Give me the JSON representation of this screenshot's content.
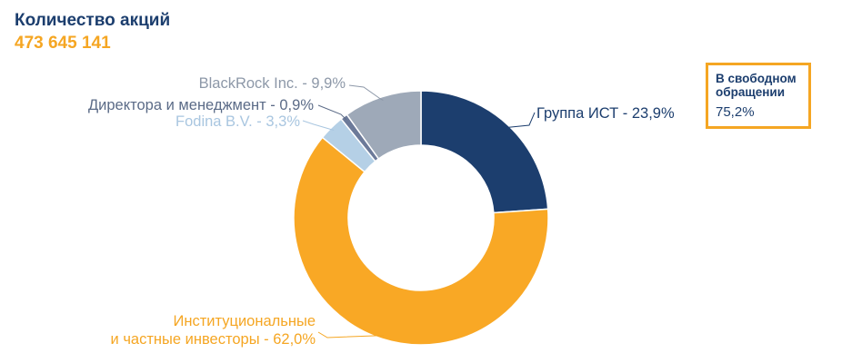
{
  "header": {
    "title": "Количество акций",
    "count": "473 645 141"
  },
  "callout": {
    "label": "В свободном обращении",
    "value": "75,2%"
  },
  "colors": {
    "group_ist": "#1c3e6e",
    "institutional": "#f9a825",
    "fodina": "#b5d0e6",
    "directors": "#6c7a99",
    "blackrock": "#9ea9b8",
    "accent": "#f5a623"
  },
  "chart_data": {
    "type": "pie",
    "donut": true,
    "title": "",
    "slices": [
      {
        "name": "Группа ИСТ",
        "value": 23.9,
        "label": "Группа ИСТ - 23,9%",
        "color": "#1c3e6e",
        "label_color": "#1c3e6e"
      },
      {
        "name": "Институциональные и частные инвесторы",
        "value": 62.0,
        "label_lines": [
          "Институциональные",
          "и частные инвесторы - 62,0%"
        ],
        "color": "#f9a825",
        "label_color": "#f5a623"
      },
      {
        "name": "Fodina B.V.",
        "value": 3.3,
        "label": "Fodina B.V. - 3,3%",
        "color": "#b5d0e6",
        "label_color": "#a9c6e0"
      },
      {
        "name": "Директора и менеджмент",
        "value": 0.9,
        "label": "Директора и менеджмент - 0,9%",
        "color": "#6c7a99",
        "label_color": "#5b6b87"
      },
      {
        "name": "BlackRock Inc.",
        "value": 9.9,
        "label": "BlackRock Inc. - 9,9%",
        "color": "#9ea9b8",
        "label_color": "#8d98a8"
      }
    ]
  }
}
